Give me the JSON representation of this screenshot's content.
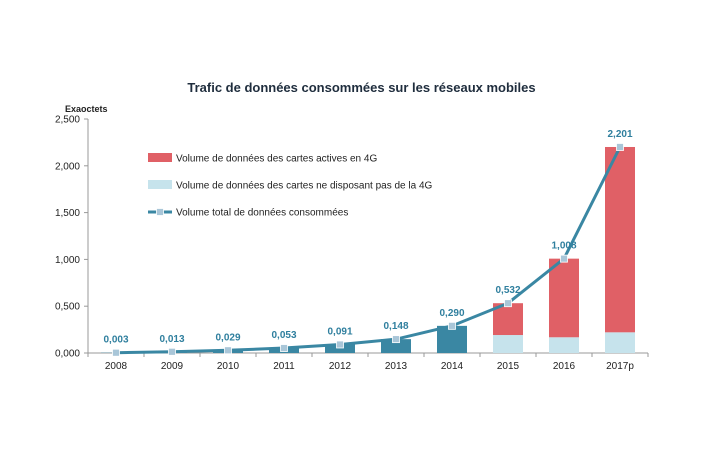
{
  "chart_data": {
    "type": "bar",
    "title": "Trafic de données consommées sur les réseaux mobiles",
    "ylabel": "Exaoctets",
    "xlabel": "",
    "ylim": [
      0,
      2.5
    ],
    "yticks": [
      "0,000",
      "0,500",
      "1,000",
      "1,500",
      "2,000",
      "2,500"
    ],
    "categories": [
      "2008",
      "2009",
      "2010",
      "2011",
      "2012",
      "2013",
      "2014",
      "2015",
      "2016",
      "2017p"
    ],
    "series": [
      {
        "name": "Volume de données des cartes actives en 4G",
        "kind": "stacked-bar",
        "color": "#e06066",
        "values": [
          0,
          0,
          0,
          0,
          0,
          0,
          0,
          0.34,
          0.84,
          1.98
        ]
      },
      {
        "name": "Volume de données des cartes ne disposant pas de la 4G",
        "kind": "stacked-bar",
        "color": "#c6e3ec",
        "values": [
          0,
          0,
          0,
          0,
          0,
          0,
          0,
          0.192,
          0.168,
          0.221
        ]
      },
      {
        "name": "Volume total de données consommées",
        "kind": "line",
        "color": "#3a87a3",
        "values": [
          0.003,
          0.013,
          0.029,
          0.053,
          0.091,
          0.148,
          0.29,
          0.532,
          1.008,
          2.201
        ]
      }
    ],
    "total_bars_color": "#3a87a3",
    "data_labels": [
      "0,003",
      "0,013",
      "0,029",
      "0,053",
      "0,091",
      "0,148",
      "0,290",
      "0,532",
      "1,008",
      "2,201"
    ],
    "legend_position": "top-left",
    "grid": false
  }
}
